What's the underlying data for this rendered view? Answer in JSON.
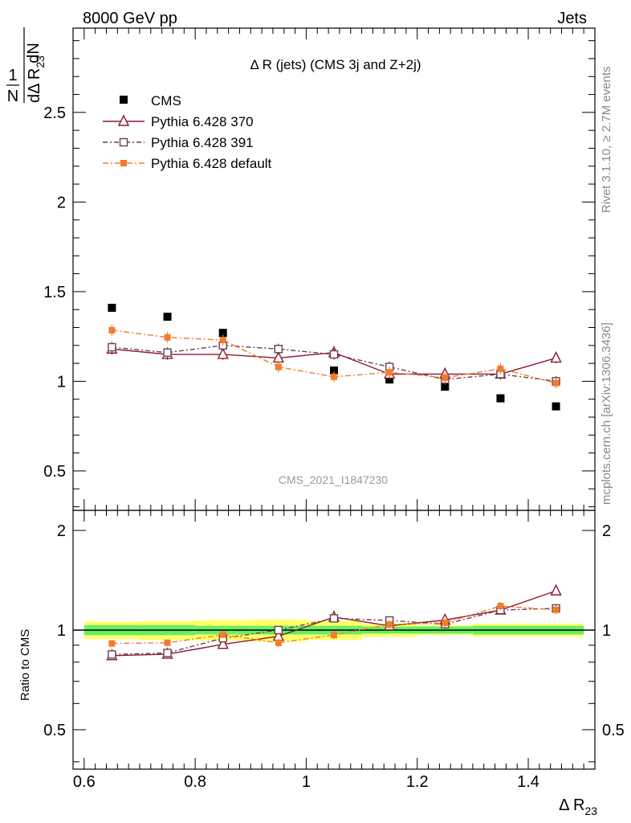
{
  "header": {
    "left": "8000 GeV pp",
    "right": "Jets"
  },
  "side_labels": {
    "rivet": "Rivet 3.1.10, ≥ 2.7M events",
    "mcplots": "mcplots.cern.ch [arXiv:1306.3436]"
  },
  "chart_data": {
    "type": "scatter",
    "title": "Δ R (jets) (CMS 3j and Z+2j)",
    "analysis_id": "CMS_2021_I1847230",
    "xlabel": "Δ R",
    "xlabel_sub": "23",
    "ylabel_main": {
      "numerator": "1",
      "denominator": "N",
      "dnum": "dN",
      "dden": "dΔ R",
      "dden_sub": "23"
    },
    "ylabel_ratio": "Ratio to CMS",
    "xlim": [
      0.58,
      1.52
    ],
    "ylim_main": [
      0.28,
      2.97
    ],
    "ylim_ratio": [
      0.38,
      2.3
    ],
    "ratio_log": true,
    "xticks": [
      "0.6",
      "0.8",
      "1",
      "1.2",
      "1.4"
    ],
    "xtick_values": [
      0.6,
      0.8,
      1.0,
      1.2,
      1.4
    ],
    "yticks_main": [
      "0.5",
      "1",
      "1.5",
      "2",
      "2.5"
    ],
    "ytick_values_main": [
      0.5,
      1.0,
      1.5,
      2.0,
      2.5
    ],
    "yticks_ratio": [
      "0.5",
      "1",
      "2"
    ],
    "ytick_values_ratio": [
      0.5,
      1.0,
      2.0
    ],
    "x": [
      0.65,
      0.75,
      0.85,
      0.95,
      1.05,
      1.15,
      1.25,
      1.35,
      1.45
    ],
    "bin_edges": [
      0.6,
      0.7,
      0.8,
      0.9,
      1.0,
      1.1,
      1.2,
      1.3,
      1.4,
      1.5
    ],
    "data_series": {
      "name": "CMS",
      "values": [
        1.41,
        1.36,
        1.27,
        1.18,
        1.06,
        1.01,
        0.97,
        0.905,
        0.86
      ],
      "color": "#000000"
    },
    "band_inner": [
      0.035,
      0.035,
      0.03,
      0.03,
      0.03,
      0.025,
      0.025,
      0.03,
      0.03
    ],
    "band_outer": [
      0.06,
      0.065,
      0.07,
      0.075,
      0.065,
      0.045,
      0.035,
      0.045,
      0.045
    ],
    "series": [
      {
        "name": "Pythia 6.428 370",
        "values": [
          1.18,
          1.15,
          1.15,
          1.13,
          1.16,
          1.04,
          1.04,
          1.04,
          1.13
        ],
        "errors": [
          0.03,
          0.03,
          0.03,
          0.03,
          0.03,
          0.03,
          0.03,
          0.03,
          0.03
        ],
        "color": "#8b1a2b",
        "marker": "triangle",
        "dash": ""
      },
      {
        "name": "Pythia 6.428 391",
        "values": [
          1.19,
          1.16,
          1.2,
          1.18,
          1.15,
          1.08,
          1.01,
          1.04,
          1.0
        ],
        "errors": [
          0.03,
          0.03,
          0.03,
          0.03,
          0.03,
          0.03,
          0.03,
          0.03,
          0.03
        ],
        "color": "#6b3e56",
        "marker": "square-open",
        "dash": "6,3,2,3"
      },
      {
        "name": "Pythia 6.428 default",
        "values": [
          1.285,
          1.245,
          1.23,
          1.08,
          1.025,
          1.05,
          1.02,
          1.07,
          0.99
        ],
        "errors": [
          0.03,
          0.03,
          0.03,
          0.03,
          0.03,
          0.03,
          0.03,
          0.03,
          0.03
        ],
        "color": "#f27c2a",
        "marker": "square-filled",
        "dash": "7,3,2,3"
      }
    ],
    "colors": {
      "band_inner": "#66ee66",
      "band_outer": "#ffff66",
      "reference_line": "#000000"
    }
  }
}
